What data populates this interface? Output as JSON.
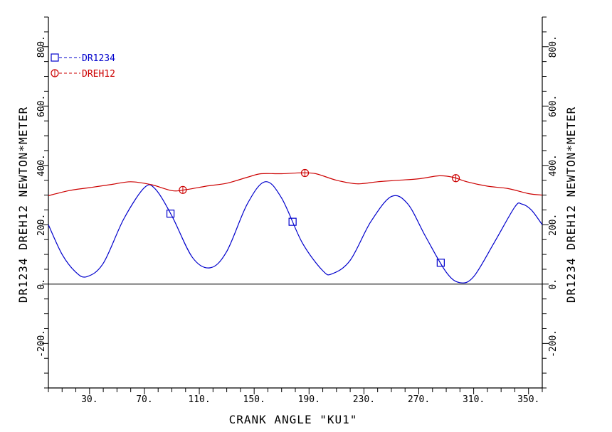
{
  "chart_data": {
    "type": "line",
    "xlabel": "CRANK ANGLE \"KU1\"",
    "ylabel": "DR1234 DREH12 NEWTON*METER",
    "xlim": [
      0,
      360
    ],
    "ylim": [
      -350,
      900
    ],
    "x_ticks": [
      "30.",
      "70.",
      "110.",
      "150.",
      "190.",
      "230.",
      "270.",
      "310.",
      "350."
    ],
    "x_tick_values": [
      30,
      70,
      110,
      150,
      190,
      230,
      270,
      310,
      350
    ],
    "y_ticks": [
      "-200.",
      "0.",
      "200.",
      "400.",
      "600.",
      "800."
    ],
    "y_tick_values": [
      -200,
      0,
      200,
      400,
      600,
      800
    ],
    "legend_position": "top-left",
    "series": [
      {
        "name": "DR1234",
        "color": "#0000cc",
        "marker": "square",
        "marker_x": [
          89,
          178,
          286
        ],
        "x": [
          0,
          10,
          20,
          28,
          40,
          55,
          70,
          78,
          90,
          105,
          118,
          130,
          145,
          158,
          170,
          185,
          200,
          207,
          220,
          235,
          250,
          262,
          275,
          290,
          300,
          310,
          325,
          340,
          345,
          352,
          360
        ],
        "y": [
          200,
          100,
          40,
          25,
          70,
          220,
          325,
          320,
          230,
          90,
          55,
          110,
          270,
          345,
          290,
          140,
          45,
          35,
          80,
          210,
          295,
          270,
          160,
          40,
          5,
          25,
          140,
          260,
          270,
          250,
          200
        ]
      },
      {
        "name": "DREH12",
        "color": "#cc0000",
        "marker": "circle",
        "marker_x": [
          98,
          187,
          297
        ],
        "x": [
          0,
          15,
          30,
          45,
          60,
          75,
          90,
          100,
          115,
          130,
          145,
          155,
          170,
          185,
          195,
          210,
          225,
          240,
          255,
          270,
          285,
          295,
          305,
          320,
          335,
          350,
          360
        ],
        "y": [
          298,
          315,
          325,
          335,
          345,
          335,
          315,
          318,
          330,
          340,
          360,
          372,
          372,
          375,
          372,
          350,
          338,
          345,
          350,
          355,
          365,
          360,
          345,
          330,
          322,
          305,
          300
        ]
      }
    ]
  }
}
